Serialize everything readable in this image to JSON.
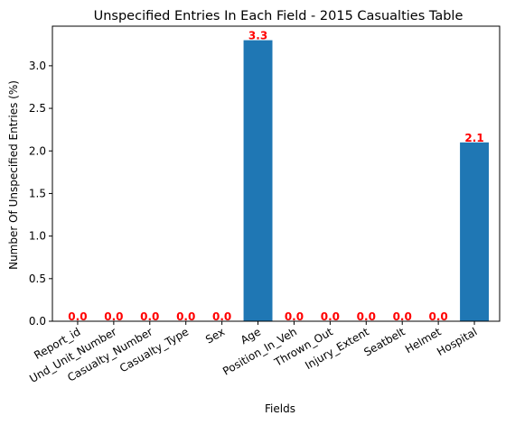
{
  "chart_data": {
    "type": "bar",
    "title": "Unspecified Entries In Each Field - 2015 Casualties Table",
    "xlabel": "Fields",
    "ylabel": "Number Of Unspecified Entries (%)",
    "categories": [
      "Report_id",
      "Und_Unit_Number",
      "Casualty_Number",
      "Casualty_Type",
      "Sex",
      "Age",
      "Position_In_Veh",
      "Thrown_Out",
      "Injury_Extent",
      "Seatbelt",
      "Helmet",
      "Hospital"
    ],
    "values": [
      0.0,
      0.0,
      0.0,
      0.0,
      0.0,
      3.3,
      0.0,
      0.0,
      0.0,
      0.0,
      0.0,
      2.1
    ],
    "data_labels": [
      "0.0",
      "0.0",
      "0.0",
      "0.0",
      "0.0",
      "3.3",
      "0.0",
      "0.0",
      "0.0",
      "0.0",
      "0.0",
      "2.1"
    ],
    "ylim": [
      0,
      3.465
    ],
    "yticks": [
      0.0,
      0.5,
      1.0,
      1.5,
      2.0,
      2.5,
      3.0
    ],
    "ytick_labels": [
      "0.0",
      "0.5",
      "1.0",
      "1.5",
      "2.0",
      "2.5",
      "3.0"
    ],
    "grid": false,
    "colors": {
      "bar": "#1f77b4",
      "data_label": "#ff0000",
      "axis": "#000000"
    }
  }
}
